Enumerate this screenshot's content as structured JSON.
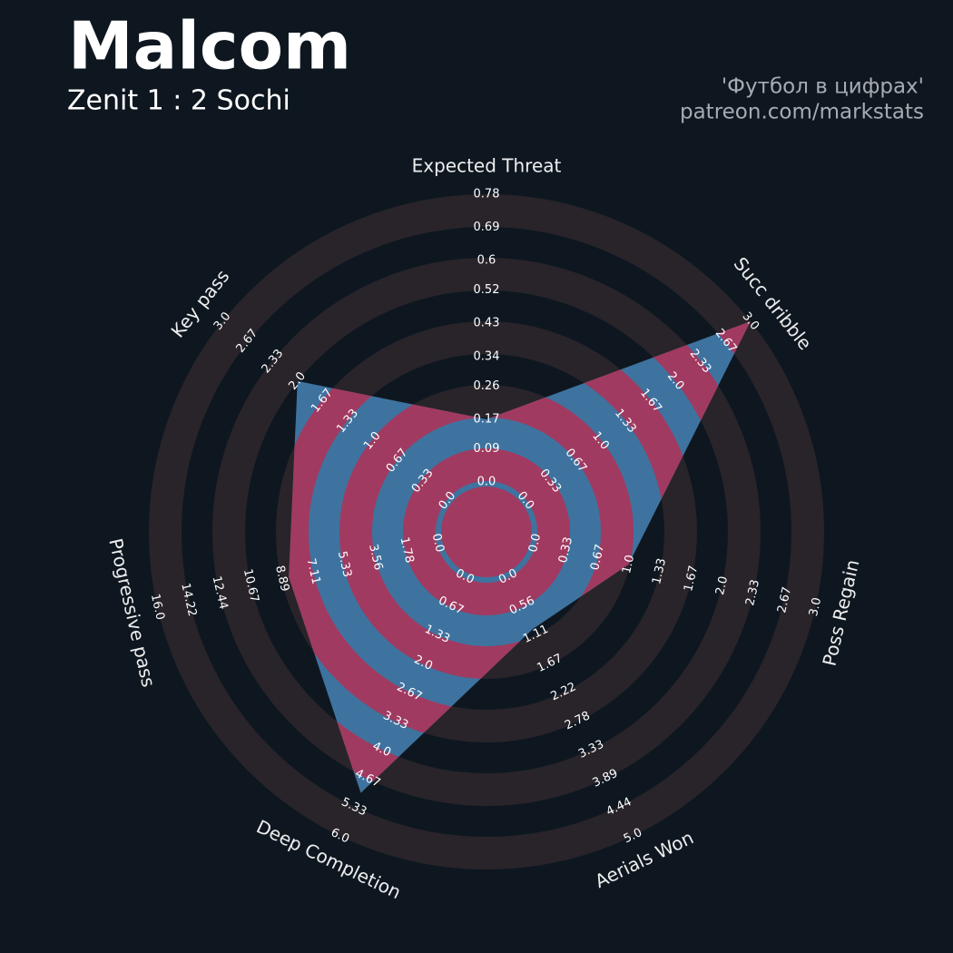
{
  "chart_data": {
    "type": "radar",
    "title": "Malcom",
    "subtitle": "Zenit 1 : 2 Sochi",
    "credits": [
      "'Футбол в цифрах'",
      "patreon.com/markstats"
    ],
    "categories": [
      "Expected Threat",
      "Succ dribble",
      "Poss Regain",
      "Aerials Won",
      "Deep Completion",
      "Progressive pass",
      "Key pass"
    ],
    "series": [
      {
        "values": [
          0.17,
          3.0,
          1.0,
          1.0,
          5.0,
          8.5,
          2.0
        ],
        "color": "#3e73a0"
      }
    ],
    "ring_color": "#a13a60",
    "background_ring_color": "#28242a",
    "axes": [
      {
        "ylim": [
          0,
          0.78
        ],
        "yticks": [
          {
            "value": 0,
            "label": "0.0"
          },
          0.09,
          0.17,
          0.26,
          0.34,
          0.43,
          0.52,
          0.6,
          0.69,
          0.78
        ]
      },
      {
        "ylim": [
          0,
          3
        ],
        "yticks": [
          {
            "value": 0,
            "label": "0.0"
          },
          0.33,
          0.67,
          {
            "value": 1,
            "label": "1.0"
          },
          1.33,
          1.67,
          {
            "value": 2,
            "label": "2.0"
          },
          2.33,
          2.67,
          {
            "value": 3,
            "label": "3.0"
          }
        ]
      },
      {
        "ylim": [
          0,
          3
        ],
        "yticks": [
          {
            "value": 0,
            "label": "0.0"
          },
          0.33,
          0.67,
          {
            "value": 1,
            "label": "1.0"
          },
          1.33,
          1.67,
          {
            "value": 2,
            "label": "2.0"
          },
          2.33,
          2.67,
          {
            "value": 3,
            "label": "3.0"
          }
        ]
      },
      {
        "ylim": [
          0,
          5
        ],
        "yticks": [
          {
            "value": 0,
            "label": "0.0"
          },
          0.56,
          1.11,
          1.67,
          2.22,
          2.78,
          3.33,
          3.89,
          4.44,
          {
            "value": 5,
            "label": "5.0"
          }
        ]
      },
      {
        "ylim": [
          0,
          6
        ],
        "yticks": [
          {
            "value": 0,
            "label": "0.0"
          },
          0.67,
          1.33,
          {
            "value": 2,
            "label": "2.0"
          },
          2.67,
          3.33,
          {
            "value": 4,
            "label": "4.0"
          },
          4.67,
          5.33,
          {
            "value": 6,
            "label": "6.0"
          }
        ]
      },
      {
        "ylim": [
          0,
          16
        ],
        "yticks": [
          {
            "value": 0,
            "label": "0.0"
          },
          1.78,
          3.56,
          5.33,
          7.11,
          8.89,
          10.67,
          12.44,
          14.22,
          {
            "value": 16,
            "label": "16.0"
          }
        ]
      },
      {
        "ylim": [
          0,
          3
        ],
        "yticks": [
          {
            "value": 0,
            "label": "0.0"
          },
          0.33,
          0.67,
          {
            "value": 1,
            "label": "1.0"
          },
          1.33,
          1.67,
          {
            "value": 2,
            "label": "2.0"
          },
          2.33,
          2.67,
          {
            "value": 3,
            "label": "3.0"
          }
        ]
      }
    ]
  }
}
